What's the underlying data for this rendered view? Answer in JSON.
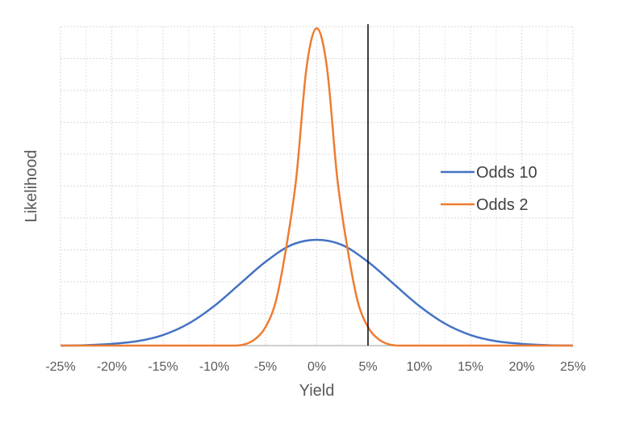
{
  "chart_data": {
    "type": "line",
    "title": "",
    "xlabel": "Yield",
    "ylabel": "Likelihood",
    "xlim": [
      -25,
      25
    ],
    "x_ticks": [
      -25,
      -20,
      -15,
      -10,
      -5,
      0,
      5,
      10,
      15,
      20,
      25
    ],
    "x_tick_labels": [
      "-25%",
      "-20%",
      "-15%",
      "-10%",
      "-5%",
      "0%",
      "5%",
      "10%",
      "15%",
      "20%",
      "25%"
    ],
    "y_ticks_shown": false,
    "grid": true,
    "legend_position": "right",
    "series": [
      {
        "name": "Odds 10",
        "color": "#4472C4",
        "x": [
          -25,
          -22.5,
          -20,
          -17.5,
          -15,
          -12.5,
          -10,
          -7.5,
          -5,
          -2.5,
          0,
          2.5,
          5,
          7.5,
          10,
          12.5,
          15,
          17.5,
          20,
          22.5,
          25
        ],
        "y": [
          0.0,
          0.001,
          0.004,
          0.01,
          0.024,
          0.05,
          0.09,
          0.14,
          0.19,
          0.228,
          0.24,
          0.228,
          0.19,
          0.14,
          0.09,
          0.05,
          0.024,
          0.01,
          0.004,
          0.001,
          0.0
        ]
      },
      {
        "name": "Odds 2",
        "color": "#ED7D31",
        "x": [
          -25,
          -10,
          -8,
          -7,
          -6,
          -5,
          -4,
          -3,
          -2,
          -1,
          0,
          1,
          2,
          3,
          4,
          5,
          6,
          7,
          8,
          10,
          25
        ],
        "y": [
          0.0,
          0.0,
          0.0,
          0.003,
          0.015,
          0.042,
          0.1,
          0.22,
          0.38,
          0.63,
          0.72,
          0.63,
          0.38,
          0.22,
          0.1,
          0.042,
          0.015,
          0.003,
          0.0,
          0.0,
          0.0
        ]
      }
    ],
    "vertical_line": {
      "x": 5,
      "color": "#000000"
    }
  }
}
